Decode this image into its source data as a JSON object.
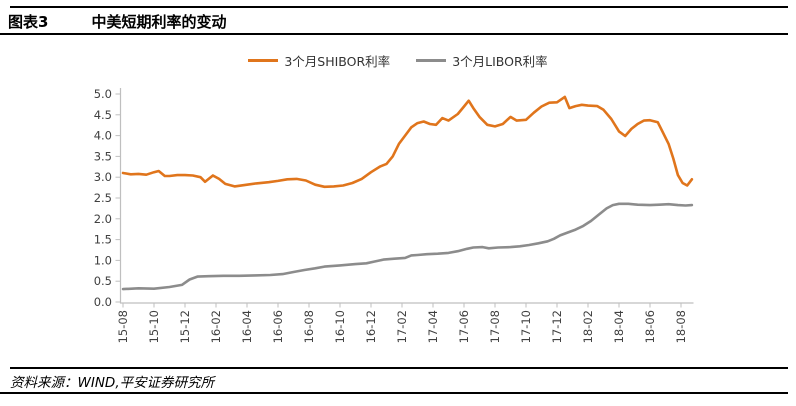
{
  "header": {
    "figure_label": "图表3",
    "title": "中美短期利率的变动"
  },
  "legend": [
    {
      "label": "3个月SHIBOR利率",
      "color": "#E0751C"
    },
    {
      "label": "3个月LIBOR利率",
      "color": "#8C8C8C"
    }
  ],
  "footer": {
    "source": "资料来源：WIND,平安证券研究所"
  },
  "colors": {
    "shibor_line": "#E0751C",
    "libor_line": "#8C8C8C",
    "axis": "#BFBFBF",
    "tick_label": "#404040",
    "rule": "#000000"
  },
  "chart_data": {
    "type": "line",
    "title": "中美短期利率的变动",
    "xlabel": "",
    "ylabel": "",
    "ylim": [
      0.0,
      5.0
    ],
    "grid": false,
    "legend_position": "top",
    "y_tick_labels": [
      "0.0",
      "0.5",
      "1.0",
      "1.5",
      "2.0",
      "2.5",
      "3.0",
      "3.5",
      "4.0",
      "4.5",
      "5.0"
    ],
    "x_tick_labels": [
      "15-08",
      "15-10",
      "15-12",
      "16-02",
      "16-04",
      "16-06",
      "16-08",
      "16-10",
      "16-12",
      "17-02",
      "17-04",
      "17-06",
      "17-08",
      "17-10",
      "17-12",
      "18-02",
      "18-04",
      "18-06",
      "18-08"
    ],
    "x_tick_month_step": 2,
    "x_unit": "months since 2015-08",
    "series": [
      {
        "name": "3个月SHIBOR利率",
        "color": "#E0751C",
        "points": [
          [
            0,
            3.1
          ],
          [
            0.5,
            3.07
          ],
          [
            1,
            3.08
          ],
          [
            1.5,
            3.06
          ],
          [
            2,
            3.12
          ],
          [
            2.3,
            3.15
          ],
          [
            2.7,
            3.03
          ],
          [
            3,
            3.03
          ],
          [
            3.5,
            3.05
          ],
          [
            4,
            3.05
          ],
          [
            4.5,
            3.04
          ],
          [
            5,
            3.0
          ],
          [
            5.3,
            2.89
          ],
          [
            5.8,
            3.04
          ],
          [
            6.2,
            2.96
          ],
          [
            6.6,
            2.84
          ],
          [
            7.2,
            2.78
          ],
          [
            8,
            2.82
          ],
          [
            8.6,
            2.85
          ],
          [
            9.4,
            2.88
          ],
          [
            10,
            2.91
          ],
          [
            10.6,
            2.95
          ],
          [
            11.2,
            2.96
          ],
          [
            11.8,
            2.92
          ],
          [
            12.4,
            2.82
          ],
          [
            13,
            2.77
          ],
          [
            13.6,
            2.78
          ],
          [
            14.2,
            2.8
          ],
          [
            14.8,
            2.86
          ],
          [
            15.4,
            2.96
          ],
          [
            16,
            3.12
          ],
          [
            16.6,
            3.26
          ],
          [
            17,
            3.32
          ],
          [
            17.4,
            3.5
          ],
          [
            17.8,
            3.8
          ],
          [
            18.2,
            4.0
          ],
          [
            18.6,
            4.2
          ],
          [
            19,
            4.3
          ],
          [
            19.4,
            4.34
          ],
          [
            19.8,
            4.28
          ],
          [
            20.2,
            4.26
          ],
          [
            20.6,
            4.42
          ],
          [
            21,
            4.36
          ],
          [
            21.6,
            4.52
          ],
          [
            22,
            4.7
          ],
          [
            22.3,
            4.84
          ],
          [
            22.6,
            4.66
          ],
          [
            23,
            4.45
          ],
          [
            23.5,
            4.26
          ],
          [
            24,
            4.22
          ],
          [
            24.5,
            4.28
          ],
          [
            25,
            4.45
          ],
          [
            25.4,
            4.36
          ],
          [
            26,
            4.38
          ],
          [
            26.5,
            4.55
          ],
          [
            27,
            4.7
          ],
          [
            27.5,
            4.79
          ],
          [
            28,
            4.8
          ],
          [
            28.5,
            4.93
          ],
          [
            28.8,
            4.66
          ],
          [
            29.2,
            4.71
          ],
          [
            29.6,
            4.74
          ],
          [
            30,
            4.72
          ],
          [
            30.6,
            4.71
          ],
          [
            31,
            4.62
          ],
          [
            31.5,
            4.4
          ],
          [
            32,
            4.1
          ],
          [
            32.4,
            3.99
          ],
          [
            32.8,
            4.16
          ],
          [
            33.2,
            4.28
          ],
          [
            33.6,
            4.36
          ],
          [
            34,
            4.37
          ],
          [
            34.5,
            4.32
          ],
          [
            34.8,
            4.1
          ],
          [
            35.2,
            3.8
          ],
          [
            35.5,
            3.45
          ],
          [
            35.8,
            3.05
          ],
          [
            36.1,
            2.86
          ],
          [
            36.4,
            2.8
          ],
          [
            36.7,
            2.95
          ]
        ]
      },
      {
        "name": "3个月LIBOR利率",
        "color": "#8C8C8C",
        "points": [
          [
            0,
            0.31
          ],
          [
            1,
            0.33
          ],
          [
            2,
            0.32
          ],
          [
            3,
            0.36
          ],
          [
            3.8,
            0.41
          ],
          [
            4.3,
            0.54
          ],
          [
            4.8,
            0.61
          ],
          [
            5.5,
            0.62
          ],
          [
            6.5,
            0.63
          ],
          [
            7.5,
            0.63
          ],
          [
            8.5,
            0.64
          ],
          [
            9.5,
            0.65
          ],
          [
            10.3,
            0.67
          ],
          [
            11,
            0.72
          ],
          [
            11.7,
            0.77
          ],
          [
            12.4,
            0.81
          ],
          [
            13,
            0.85
          ],
          [
            14,
            0.88
          ],
          [
            15,
            0.91
          ],
          [
            15.7,
            0.93
          ],
          [
            16.2,
            0.97
          ],
          [
            16.8,
            1.02
          ],
          [
            17.5,
            1.04
          ],
          [
            18.2,
            1.06
          ],
          [
            18.6,
            1.12
          ],
          [
            19,
            1.13
          ],
          [
            19.6,
            1.15
          ],
          [
            20.3,
            1.16
          ],
          [
            21,
            1.18
          ],
          [
            21.6,
            1.22
          ],
          [
            22.2,
            1.28
          ],
          [
            22.6,
            1.31
          ],
          [
            23.2,
            1.32
          ],
          [
            23.6,
            1.29
          ],
          [
            24.2,
            1.31
          ],
          [
            25,
            1.32
          ],
          [
            25.6,
            1.34
          ],
          [
            26.2,
            1.37
          ],
          [
            26.8,
            1.41
          ],
          [
            27.4,
            1.46
          ],
          [
            27.8,
            1.52
          ],
          [
            28.2,
            1.6
          ],
          [
            28.7,
            1.67
          ],
          [
            29.2,
            1.74
          ],
          [
            29.7,
            1.83
          ],
          [
            30.2,
            1.95
          ],
          [
            30.7,
            2.1
          ],
          [
            31.2,
            2.25
          ],
          [
            31.6,
            2.33
          ],
          [
            32,
            2.36
          ],
          [
            32.6,
            2.36
          ],
          [
            33.2,
            2.34
          ],
          [
            34,
            2.33
          ],
          [
            34.6,
            2.34
          ],
          [
            35.2,
            2.35
          ],
          [
            35.8,
            2.33
          ],
          [
            36.3,
            2.32
          ],
          [
            36.7,
            2.33
          ]
        ]
      }
    ]
  }
}
